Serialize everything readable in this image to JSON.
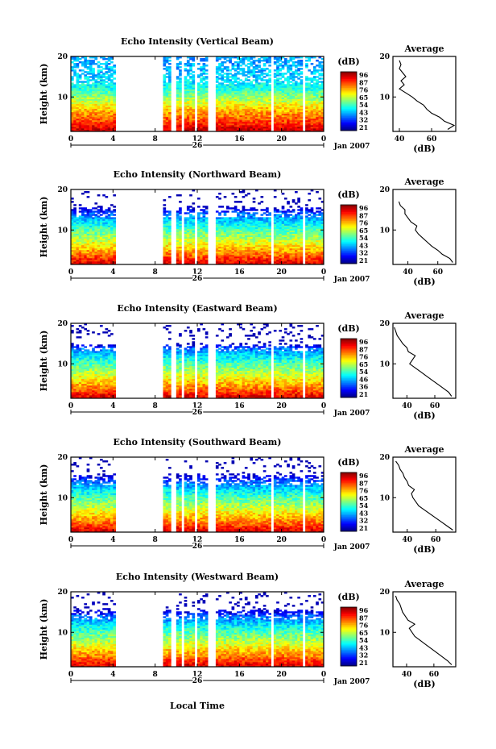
{
  "figure": {
    "xlabel": "Local Time",
    "date_label": "Jan 2007",
    "day_label": "26",
    "colorbar_unit": "(dB)",
    "avg_title": "Average",
    "avg_xlabel": "(dB)",
    "ylabel": "Height (km)"
  },
  "chart_data": [
    {
      "type": "heatmap",
      "title": "Echo Intensity (Vertical Beam)",
      "xlabel": "",
      "ylabel": "Height (km)",
      "x_ticks": [
        "0",
        "4",
        "8",
        "12",
        "16",
        "20",
        "0"
      ],
      "xlim": [
        0,
        24
      ],
      "ylim": [
        1.5,
        20
      ],
      "y_ticks": [
        "20",
        "10"
      ],
      "colorbar_ticks": [
        "96",
        "87",
        "76",
        "65",
        "54",
        "43",
        "32",
        "21"
      ],
      "colorbar_range": [
        21,
        96
      ],
      "data_gaps_hours": [
        [
          4.2,
          5.2
        ],
        [
          5.3,
          8.8
        ],
        [
          9.6,
          9.9
        ],
        [
          10.5,
          10.8
        ],
        [
          11.7,
          12.0
        ],
        [
          13.0,
          13.8
        ],
        [
          19.0,
          19.3
        ],
        [
          22.0,
          22.3
        ]
      ],
      "profile_heights_km": [
        2,
        4,
        6,
        8,
        10,
        12,
        14,
        16,
        18,
        20
      ],
      "profile_intensity_db": [
        90,
        82,
        76,
        68,
        60,
        52,
        47,
        45,
        43,
        42
      ],
      "average_profile": {
        "title": "Average",
        "xlabel": "(dB)",
        "x_ticks": [
          "40",
          "60"
        ],
        "xlim": [
          36,
          75
        ],
        "y_ticks": [
          "20",
          "10"
        ],
        "heights_km": [
          2,
          3,
          4,
          5,
          6,
          7,
          8,
          9,
          10,
          11,
          12,
          13,
          14,
          15,
          16,
          17,
          18,
          19
        ],
        "values_db": [
          70,
          74,
          68,
          65,
          60,
          57,
          55,
          51,
          48,
          44,
          40,
          43,
          41,
          44,
          42,
          40,
          41,
          40
        ]
      }
    },
    {
      "type": "heatmap",
      "title": "Echo Intensity (Northward Beam)",
      "xlabel": "",
      "ylabel": "Height (km)",
      "x_ticks": [
        "0",
        "4",
        "8",
        "12",
        "16",
        "20",
        "0"
      ],
      "xlim": [
        0,
        24
      ],
      "ylim": [
        1.5,
        20
      ],
      "y_ticks": [
        "20",
        "10"
      ],
      "colorbar_ticks": [
        "96",
        "87",
        "76",
        "65",
        "54",
        "43",
        "32",
        "21"
      ],
      "colorbar_range": [
        21,
        96
      ],
      "data_gaps_hours": [
        [
          4.2,
          5.2
        ],
        [
          5.3,
          8.8
        ],
        [
          9.6,
          9.9
        ],
        [
          10.5,
          10.8
        ],
        [
          11.7,
          12.0
        ],
        [
          13.0,
          13.8
        ],
        [
          19.0,
          19.3
        ],
        [
          22.0,
          22.3
        ]
      ],
      "profile_heights_km": [
        2,
        4,
        6,
        8,
        10,
        12,
        14,
        16,
        20
      ],
      "profile_intensity_db": [
        88,
        78,
        70,
        62,
        55,
        47,
        38,
        20,
        20
      ],
      "average_profile": {
        "title": "Average",
        "xlabel": "(dB)",
        "x_ticks": [
          "40",
          "60"
        ],
        "xlim": [
          30,
          72
        ],
        "y_ticks": [
          "20",
          "10"
        ],
        "heights_km": [
          2,
          3,
          4,
          5,
          6,
          7,
          8,
          9,
          10,
          11,
          12,
          13,
          14,
          15,
          16,
          17
        ],
        "values_db": [
          70,
          68,
          63,
          60,
          56,
          53,
          50,
          47,
          45,
          46,
          42,
          40,
          38,
          38,
          35,
          34
        ]
      }
    },
    {
      "type": "heatmap",
      "title": "Echo Intensity (Eastward Beam)",
      "xlabel": "",
      "ylabel": "Height (km)",
      "x_ticks": [
        "0",
        "4",
        "8",
        "12",
        "16",
        "20",
        "0"
      ],
      "xlim": [
        0,
        24
      ],
      "ylim": [
        1.5,
        20
      ],
      "y_ticks": [
        "20",
        "10"
      ],
      "colorbar_ticks": [
        "96",
        "87",
        "76",
        "65",
        "54",
        "46",
        "36",
        "21"
      ],
      "colorbar_range": [
        21,
        96
      ],
      "data_gaps_hours": [
        [
          4.2,
          5.2
        ],
        [
          5.3,
          8.8
        ],
        [
          9.6,
          9.9
        ],
        [
          10.5,
          10.8
        ],
        [
          11.7,
          12.0
        ],
        [
          13.0,
          13.8
        ],
        [
          19.0,
          19.3
        ],
        [
          22.0,
          22.3
        ]
      ],
      "profile_heights_km": [
        2,
        4,
        6,
        8,
        10,
        12,
        14,
        15,
        20
      ],
      "profile_intensity_db": [
        88,
        78,
        70,
        62,
        55,
        47,
        38,
        20,
        20
      ],
      "average_profile": {
        "title": "Average",
        "xlabel": "(dB)",
        "x_ticks": [
          "40",
          "60"
        ],
        "xlim": [
          30,
          75
        ],
        "y_ticks": [
          "20",
          "10"
        ],
        "heights_km": [
          2,
          3,
          4,
          5,
          6,
          7,
          8,
          9,
          10,
          11,
          12,
          13,
          14,
          15,
          16,
          17,
          18,
          19
        ],
        "values_db": [
          72,
          70,
          66,
          62,
          58,
          54,
          50,
          46,
          42,
          44,
          46,
          41,
          40,
          37,
          35,
          33,
          32,
          31
        ]
      }
    },
    {
      "type": "heatmap",
      "title": "Echo Intensity (Southward Beam)",
      "xlabel": "",
      "ylabel": "Height (km)",
      "x_ticks": [
        "0",
        "4",
        "8",
        "12",
        "16",
        "20",
        "0"
      ],
      "xlim": [
        0,
        24
      ],
      "ylim": [
        1.5,
        20
      ],
      "y_ticks": [
        "20",
        "10"
      ],
      "colorbar_ticks": [
        "96",
        "87",
        "76",
        "65",
        "54",
        "43",
        "32",
        "21"
      ],
      "colorbar_range": [
        21,
        96
      ],
      "data_gaps_hours": [
        [
          4.2,
          5.2
        ],
        [
          5.3,
          8.8
        ],
        [
          9.6,
          9.9
        ],
        [
          10.5,
          10.8
        ],
        [
          11.7,
          12.0
        ],
        [
          13.0,
          13.8
        ],
        [
          19.0,
          19.3
        ],
        [
          22.0,
          22.3
        ]
      ],
      "profile_heights_km": [
        2,
        4,
        6,
        8,
        10,
        12,
        14,
        16,
        20
      ],
      "profile_intensity_db": [
        88,
        78,
        70,
        62,
        55,
        47,
        38,
        20,
        20
      ],
      "average_profile": {
        "title": "Average",
        "xlabel": "(dB)",
        "x_ticks": [
          "40",
          "60"
        ],
        "xlim": [
          30,
          74
        ],
        "y_ticks": [
          "20",
          "10"
        ],
        "heights_km": [
          2,
          3,
          4,
          5,
          6,
          7,
          8,
          9,
          10,
          11,
          12,
          13,
          14,
          15,
          16,
          17,
          18,
          19
        ],
        "values_db": [
          72,
          68,
          64,
          60,
          56,
          52,
          48,
          46,
          44,
          43,
          45,
          41,
          40,
          38,
          37,
          35,
          34,
          32
        ]
      }
    },
    {
      "type": "heatmap",
      "title": "Echo Intensity (Westward Beam)",
      "xlabel": "Local Time",
      "ylabel": "Height (km)",
      "x_ticks": [
        "0",
        "4",
        "8",
        "12",
        "16",
        "20",
        "0"
      ],
      "xlim": [
        0,
        24
      ],
      "ylim": [
        1.5,
        20
      ],
      "y_ticks": [
        "20",
        "10"
      ],
      "colorbar_ticks": [
        "96",
        "87",
        "76",
        "65",
        "54",
        "43",
        "32",
        "21"
      ],
      "colorbar_range": [
        21,
        96
      ],
      "data_gaps_hours": [
        [
          4.2,
          5.2
        ],
        [
          5.3,
          8.8
        ],
        [
          9.6,
          9.9
        ],
        [
          10.5,
          10.8
        ],
        [
          11.7,
          12.0
        ],
        [
          13.0,
          13.8
        ],
        [
          19.0,
          19.3
        ],
        [
          22.0,
          22.3
        ]
      ],
      "profile_heights_km": [
        2,
        4,
        6,
        8,
        10,
        12,
        14,
        16,
        20
      ],
      "profile_intensity_db": [
        88,
        78,
        70,
        62,
        55,
        47,
        38,
        20,
        20
      ],
      "average_profile": {
        "title": "Average",
        "xlabel": "(dB)",
        "x_ticks": [
          "40",
          "60"
        ],
        "xlim": [
          30,
          76
        ],
        "y_ticks": [
          "20",
          "10"
        ],
        "heights_km": [
          2,
          3,
          4,
          5,
          6,
          7,
          8,
          9,
          10,
          11,
          12,
          13,
          14,
          15,
          16,
          17,
          18,
          19
        ],
        "values_db": [
          73,
          70,
          66,
          62,
          58,
          54,
          50,
          46,
          44,
          42,
          46,
          41,
          39,
          37,
          36,
          35,
          33,
          32
        ]
      }
    }
  ]
}
